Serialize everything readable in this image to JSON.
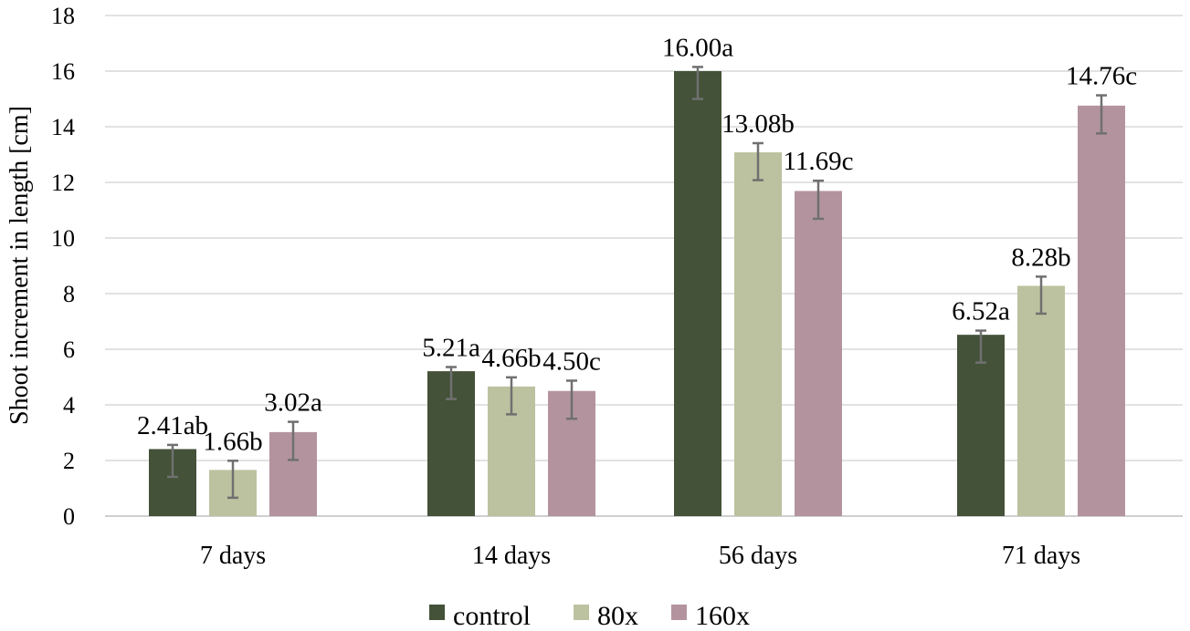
{
  "chart_data": {
    "type": "bar",
    "title": "",
    "xlabel": "",
    "ylabel": "Shoot increment in length [cm]",
    "ylim": [
      0,
      18
    ],
    "yticks": [
      0,
      2,
      4,
      6,
      8,
      10,
      12,
      14,
      16,
      18
    ],
    "grid": true,
    "legend_position": "bottom",
    "categories": [
      "7 days",
      "14 days",
      "56 days",
      "71 days"
    ],
    "series": [
      {
        "name": "control",
        "color": "#435238",
        "values": [
          2.41,
          5.21,
          16.0,
          6.52
        ],
        "errors": [
          1.0,
          1.0,
          1.0,
          1.0
        ],
        "labels": [
          "2.41ab",
          "5.21a",
          "16.00a",
          "6.52a"
        ]
      },
      {
        "name": "80x",
        "color": "#bcc29f",
        "values": [
          1.66,
          4.66,
          13.08,
          8.28
        ],
        "errors": [
          0.33,
          0.33,
          0.33,
          0.33
        ],
        "labels": [
          "1.66b",
          "4.66b",
          "13.08b",
          "8.28b"
        ]
      },
      {
        "name": "160x",
        "color": "#b3949e",
        "values": [
          3.02,
          4.5,
          11.69,
          14.76
        ],
        "errors": [
          0.37,
          0.37,
          0.37,
          0.37
        ],
        "labels": [
          "3.02a",
          "4.50c",
          "11.69c",
          "14.76c"
        ]
      }
    ]
  }
}
